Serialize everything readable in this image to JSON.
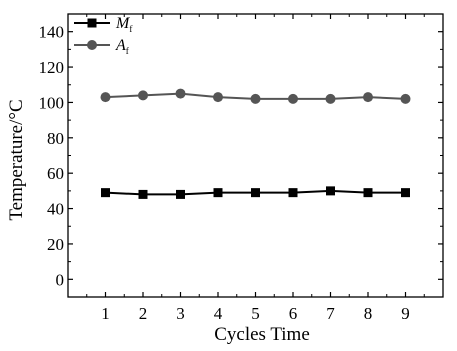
{
  "chart_data": {
    "type": "line",
    "title": "",
    "xlabel": "Cycles Time",
    "ylabel": "Temperature/°C",
    "x": [
      1,
      2,
      3,
      4,
      5,
      6,
      7,
      8,
      9
    ],
    "xlim": [
      0,
      10
    ],
    "ylim": [
      -10,
      150
    ],
    "xticks": [
      1,
      2,
      3,
      4,
      5,
      6,
      7,
      8,
      9
    ],
    "yticks": [
      0,
      20,
      40,
      60,
      80,
      100,
      120,
      140
    ],
    "grid": false,
    "legend_position": "top-left",
    "series": [
      {
        "name": "M",
        "name_subscript": "f",
        "marker": "square",
        "color": "#000000",
        "values": [
          49,
          48,
          48,
          49,
          49,
          49,
          50,
          49,
          49
        ]
      },
      {
        "name": "A",
        "name_subscript": "f",
        "marker": "circle",
        "color": "#555555",
        "values": [
          103,
          104,
          105,
          103,
          102,
          102,
          102,
          103,
          102
        ]
      }
    ]
  }
}
